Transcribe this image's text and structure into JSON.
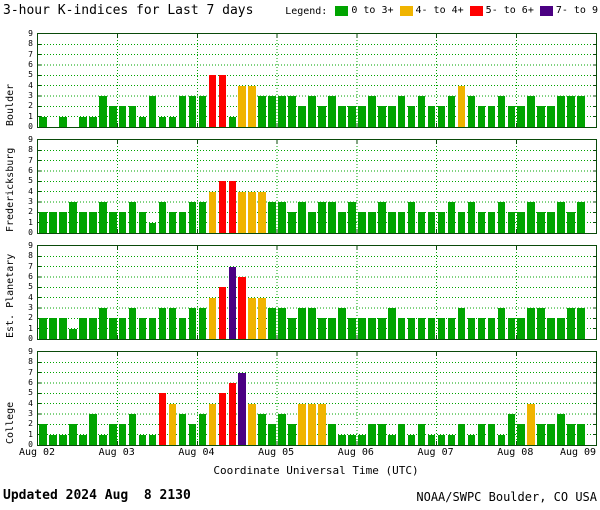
{
  "title": "3-hour K-indices for Last 7 days",
  "legend": {
    "label": "Legend:",
    "items": [
      {
        "label": "0 to 3+",
        "color": "#00a400"
      },
      {
        "label": "4- to 4+",
        "color": "#f0b400"
      },
      {
        "label": "5- to 6+",
        "color": "#ff0000"
      },
      {
        "label": "7- to 9",
        "color": "#4b0082"
      }
    ]
  },
  "x_axis": {
    "title": "Coordinate Universal Time (UTC)",
    "tick_labels": [
      "Aug 02",
      "Aug 03",
      "Aug 04",
      "Aug 05",
      "Aug 06",
      "Aug 07",
      "Aug 08",
      "Aug 09"
    ]
  },
  "y_axis": {
    "min": 0,
    "max": 9,
    "ticks": [
      "0",
      "1",
      "2",
      "3",
      "4",
      "5",
      "6",
      "7",
      "8",
      "9"
    ]
  },
  "footer": {
    "updated": "Updated 2024 Aug  8 2130",
    "source": "NOAA/SWPC Boulder, CO USA"
  },
  "colors": {
    "green": "#00a400",
    "yellow": "#f0b400",
    "red": "#ff0000",
    "purple": "#4b0082",
    "frame": "#0a4a0a",
    "grid": "#00a400"
  },
  "chart_data": {
    "type": "bar",
    "title": "3-hour K-indices for Last 7 days",
    "xlabel": "Coordinate Universal Time (UTC)",
    "interval_hours": 3,
    "x_start": "Aug 02",
    "x_end": "Aug 09",
    "ylim": [
      0,
      9
    ],
    "grid": true,
    "color_scale": [
      {
        "range": "0 to 3+",
        "color": "#00a400"
      },
      {
        "range": "4- to 4+",
        "color": "#f0b400"
      },
      {
        "range": "5- to 6+",
        "color": "#ff0000"
      },
      {
        "range": "7- to 9",
        "color": "#4b0082"
      }
    ],
    "series": [
      {
        "name": "Boulder",
        "values": [
          1,
          0,
          1,
          0,
          1,
          1,
          3,
          2,
          2,
          2,
          1,
          3,
          1,
          1,
          3,
          3,
          3,
          5,
          5,
          1,
          4,
          4,
          3,
          3,
          3,
          3,
          2,
          3,
          2,
          3,
          2,
          2,
          2,
          3,
          2,
          2,
          3,
          2,
          3,
          2,
          2,
          3,
          4,
          3,
          2,
          2,
          3,
          2,
          2,
          3,
          2,
          2,
          3,
          3,
          3
        ]
      },
      {
        "name": "Fredericksburg",
        "values": [
          2,
          2,
          2,
          3,
          2,
          2,
          3,
          2,
          2,
          3,
          2,
          1,
          3,
          2,
          2,
          3,
          3,
          4,
          5,
          5,
          4,
          4,
          4,
          3,
          3,
          2,
          3,
          2,
          3,
          3,
          2,
          3,
          2,
          2,
          3,
          2,
          2,
          3,
          2,
          2,
          2,
          3,
          2,
          3,
          2,
          2,
          3,
          2,
          2,
          3,
          2,
          2,
          3,
          2,
          3
        ]
      },
      {
        "name": "Est. Planetary",
        "values": [
          2,
          2,
          2,
          1,
          2,
          2,
          3,
          2,
          2,
          3,
          2,
          2,
          3,
          3,
          2,
          3,
          3,
          4,
          5,
          7,
          6,
          4,
          4,
          3,
          3,
          2,
          3,
          3,
          2,
          2,
          3,
          2,
          2,
          2,
          2,
          3,
          2,
          2,
          2,
          2,
          2,
          2,
          3,
          2,
          2,
          2,
          3,
          2,
          2,
          3,
          3,
          2,
          2,
          3,
          3
        ]
      },
      {
        "name": "College",
        "values": [
          2,
          1,
          1,
          2,
          1,
          3,
          1,
          2,
          2,
          3,
          1,
          1,
          5,
          4,
          3,
          2,
          3,
          4,
          5,
          6,
          7,
          4,
          3,
          2,
          3,
          2,
          4,
          4,
          4,
          2,
          1,
          1,
          1,
          2,
          2,
          1,
          2,
          1,
          2,
          1,
          1,
          1,
          2,
          1,
          2,
          2,
          1,
          3,
          2,
          4,
          2,
          2,
          3,
          2,
          2
        ]
      }
    ]
  }
}
